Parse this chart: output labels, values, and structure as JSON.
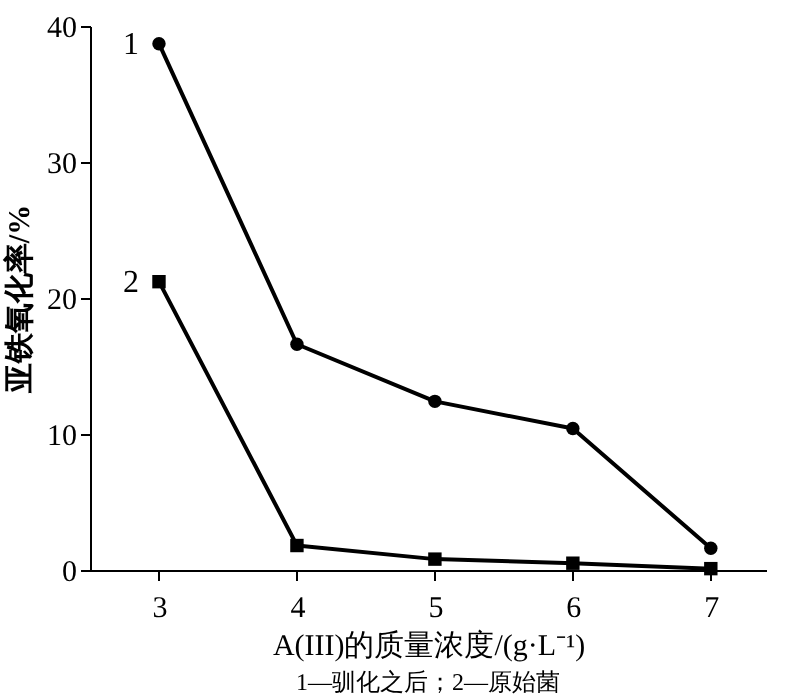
{
  "chart_data": {
    "type": "line",
    "xlabel": "A(III)的质量浓度/(g·L⁻¹)",
    "ylabel": "亚铁氧化率/%",
    "x": [
      3,
      4,
      5,
      6,
      7
    ],
    "series": [
      {
        "name": "1",
        "color": "#000000",
        "marker": "circle",
        "values": [
          38.7,
          16.6,
          12.4,
          10.4,
          1.6
        ]
      },
      {
        "name": "2",
        "color": "#000000",
        "marker": "square",
        "values": [
          21.2,
          1.8,
          0.8,
          0.5,
          0.1
        ]
      }
    ],
    "xlim": [
      2.5,
      7.4
    ],
    "xticks": [
      3,
      4,
      5,
      6,
      7
    ],
    "ylim": [
      0,
      40
    ],
    "yticks": [
      0,
      10,
      20,
      30,
      40
    ],
    "grid": false,
    "line_style": "solid",
    "annotations": [
      "1—驯化之后；2—原始菌"
    ]
  }
}
